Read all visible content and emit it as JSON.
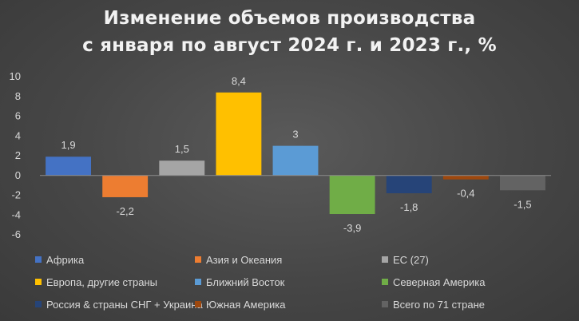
{
  "chart_data": {
    "type": "bar",
    "title_lines": [
      "Изменение объемов производства",
      "с января по август 2024 г. и 2023 г., %"
    ],
    "xlabel": "",
    "ylabel": "",
    "ylim": [
      -6,
      10
    ],
    "yticks": [
      10,
      8,
      6,
      4,
      2,
      0,
      -2,
      -4,
      -6
    ],
    "ytick_labels": [
      "10",
      "8",
      "6",
      "4",
      "2",
      "0",
      "-2",
      "-4",
      "-6"
    ],
    "grid": false,
    "legend_position": "bottom",
    "series": [
      {
        "name": "Африка",
        "value": 1.9,
        "label": "1,9",
        "color": "#4472c4"
      },
      {
        "name": "Азия и Океания",
        "value": -2.2,
        "label": "-2,2",
        "color": "#ed7d31"
      },
      {
        "name": "ЕС (27)",
        "value": 1.5,
        "label": "1,5",
        "color": "#a5a5a5"
      },
      {
        "name": "Европа, другие страны",
        "value": 8.4,
        "label": "8,4",
        "color": "#ffc000"
      },
      {
        "name": "Ближний Восток",
        "value": 3,
        "label": "3",
        "color": "#5b9bd5"
      },
      {
        "name": "Северная Америка",
        "value": -3.9,
        "label": "-3,9",
        "color": "#70ad47"
      },
      {
        "name": "Россия & страны СНГ + Украина",
        "value": -1.8,
        "label": "-1,8",
        "color": "#264478"
      },
      {
        "name": "Южная Америка",
        "value": -0.4,
        "label": "-0,4",
        "color": "#9e480e"
      },
      {
        "name": "Всего по 71 стране",
        "value": -1.5,
        "label": "-1,5",
        "color": "#636363"
      }
    ]
  }
}
